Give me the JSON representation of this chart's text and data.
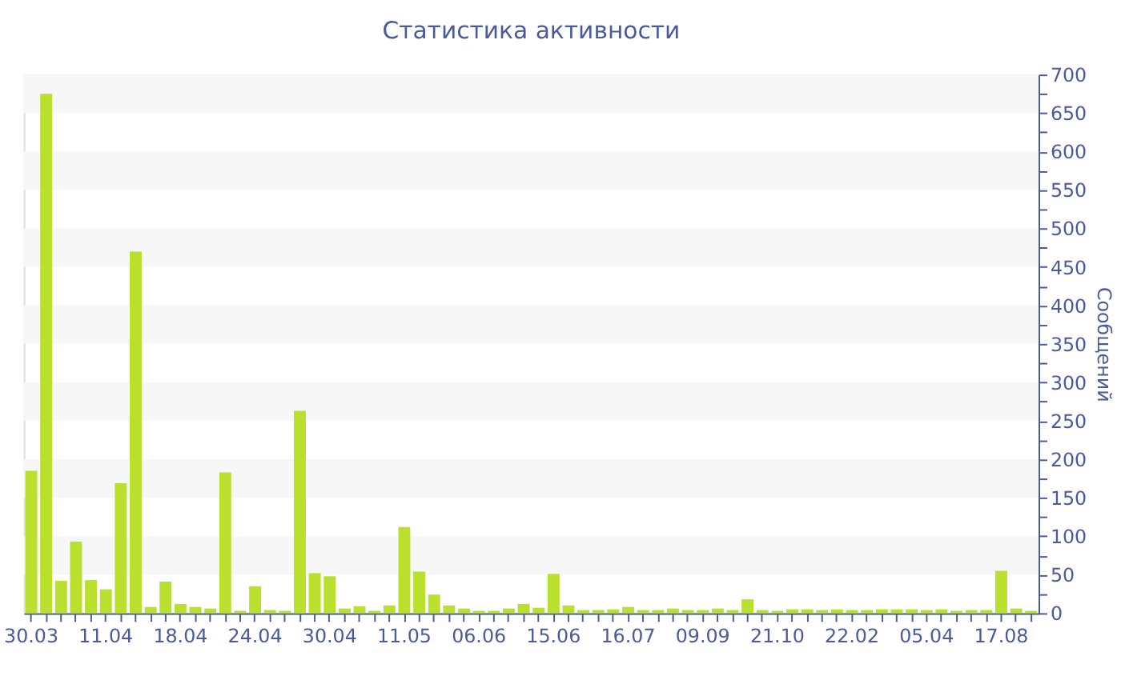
{
  "chart_data": {
    "type": "bar",
    "title": "Статистика активности",
    "ylabel": "Сообщений",
    "categories": [
      "30.03",
      null,
      null,
      null,
      null,
      "11.04",
      null,
      null,
      null,
      null,
      "18.04",
      null,
      null,
      null,
      null,
      "24.04",
      null,
      null,
      null,
      null,
      "30.04",
      null,
      null,
      null,
      null,
      "11.05",
      null,
      null,
      null,
      null,
      "06.06",
      null,
      null,
      null,
      null,
      "15.06",
      null,
      null,
      null,
      null,
      "16.07",
      null,
      null,
      null,
      null,
      "09.09",
      null,
      null,
      null,
      null,
      "21.10",
      null,
      null,
      null,
      null,
      "22.02",
      null,
      null,
      null,
      null,
      "05.04",
      null,
      null,
      null,
      null,
      "17.08",
      null,
      null
    ],
    "values": [
      185,
      675,
      42,
      93,
      43,
      31,
      169,
      470,
      8,
      41,
      12,
      8,
      6,
      183,
      3,
      35,
      4,
      3,
      263,
      52,
      48,
      6,
      9,
      3,
      10,
      112,
      54,
      24,
      10,
      6,
      3,
      3,
      6,
      12,
      7,
      51,
      10,
      4,
      4,
      5,
      8,
      4,
      4,
      6,
      4,
      4,
      6,
      4,
      18,
      4,
      3,
      5,
      5,
      4,
      5,
      4,
      4,
      5,
      5,
      5,
      4,
      5,
      3,
      4,
      4,
      55,
      6,
      3
    ],
    "color": "#b9e02c",
    "ylim": [
      0,
      700
    ],
    "yticks": [
      0,
      {
        "value": 25,
        "label": null
      },
      50,
      {
        "value": 75,
        "label": null
      },
      100,
      {
        "value": 125,
        "label": null
      },
      150,
      {
        "value": 175,
        "label": null
      },
      200,
      {
        "value": 225,
        "label": null
      },
      250,
      {
        "value": 275,
        "label": null
      },
      300,
      {
        "value": 325,
        "label": null
      },
      350,
      {
        "value": 375,
        "label": null
      },
      400,
      {
        "value": 425,
        "label": null
      },
      450,
      {
        "value": 475,
        "label": null
      },
      500,
      {
        "value": 525,
        "label": null
      },
      550,
      {
        "value": 575,
        "label": null
      },
      600,
      {
        "value": 625,
        "label": null
      },
      650,
      {
        "value": 675,
        "label": null
      },
      700
    ],
    "bands": [
      {
        "axis": "y",
        "from": 50,
        "to": 100,
        "color": "#f7f7f7"
      },
      {
        "axis": "y",
        "from": 150,
        "to": 200,
        "color": "#f7f7f7"
      },
      {
        "axis": "y",
        "from": 250,
        "to": 300,
        "color": "#f7f7f7"
      },
      {
        "axis": "y",
        "from": 350,
        "to": 400,
        "color": "#f7f7f7"
      },
      {
        "axis": "y",
        "from": 450,
        "to": 500,
        "color": "#f7f7f7"
      },
      {
        "axis": "y",
        "from": 550,
        "to": 600,
        "color": "#f7f7f7"
      },
      {
        "axis": "y",
        "from": 650,
        "to": 700,
        "color": "#f7f7f7"
      }
    ],
    "grid": false
  }
}
